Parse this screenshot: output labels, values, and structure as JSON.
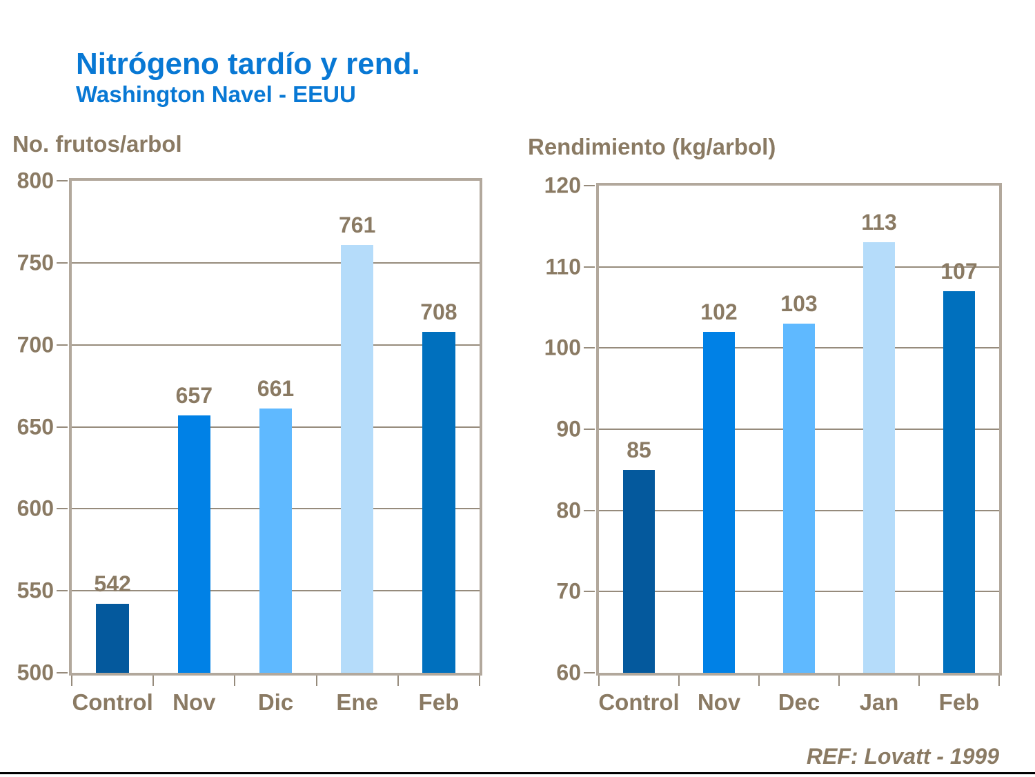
{
  "slide": {
    "title": "Nitrógeno tardío y rend.",
    "subtitle": "Washington Navel - EEUU",
    "footer_ref": "REF: Lovatt - 1999"
  },
  "colors": {
    "title_blue": "#0878D4",
    "axis_text_brown": "#8A7A63",
    "gridline": "#968B7C",
    "plot_border": "#B2A89C",
    "bottom_rule": "#000000"
  },
  "chart_data": [
    {
      "type": "bar",
      "title": "No. frutos/arbol",
      "categories": [
        "Control",
        "Nov",
        "Dic",
        "Ene",
        "Feb"
      ],
      "values": [
        542,
        657,
        661,
        761,
        708
      ],
      "bar_colors": [
        "#04599D",
        "#0081E6",
        "#5FB9FF",
        "#B5DCFA",
        "#0070BE"
      ],
      "ylim": [
        500,
        800
      ],
      "yticks": [
        500,
        550,
        600,
        650,
        700,
        750,
        800
      ],
      "grid": true,
      "legend": "none",
      "value_labels": true
    },
    {
      "type": "bar",
      "title": "Rendimiento (kg/arbol)",
      "categories": [
        "Control",
        "Nov",
        "Dec",
        "Jan",
        "Feb"
      ],
      "values": [
        85,
        102,
        103,
        113,
        107
      ],
      "bar_colors": [
        "#04599D",
        "#0081E6",
        "#5FB9FF",
        "#B5DCFA",
        "#0070BE"
      ],
      "ylim": [
        60,
        120
      ],
      "yticks": [
        60,
        70,
        80,
        90,
        100,
        110,
        120
      ],
      "grid": true,
      "legend": "none",
      "value_labels": true
    }
  ]
}
